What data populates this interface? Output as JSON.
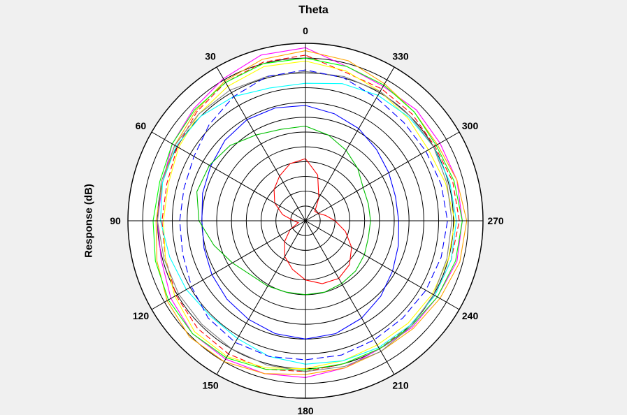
{
  "chart_data": {
    "type": "polar-line",
    "title": "Theta",
    "ylabel": "Response  (dB)",
    "angle_ticks": [
      "0",
      "30",
      "60",
      "90",
      "120",
      "150",
      "180",
      "210",
      "240",
      "270",
      "300",
      "330"
    ],
    "angle_direction": "counterclockwise",
    "angle_zero": "top",
    "rings": 12,
    "radial_range": [
      0,
      12
    ],
    "grid": true,
    "legend": "none",
    "series": [
      {
        "color": "#ff00ff",
        "values": [
          11.7,
          11.6,
          11.1,
          10.7,
          10.4,
          10.0,
          10.0,
          10.1,
          10.5,
          10.8,
          10.8,
          10.7,
          10.6,
          10.3,
          10.0,
          10.2,
          10.3,
          10.6,
          10.6,
          10.6,
          10.5,
          10.6,
          10.5,
          10.8
        ]
      },
      {
        "color": "#ff0000",
        "dash": "8,4",
        "values": [
          11.2,
          11.1,
          10.8,
          10.4,
          10.0,
          9.7,
          9.7,
          9.8,
          10.1,
          10.3,
          10.4,
          10.4,
          10.2,
          10.0,
          10.0,
          10.0,
          10.1,
          10.2,
          10.4,
          10.3,
          10.1,
          10.2,
          10.3,
          10.4
        ]
      },
      {
        "color": "#ffa500",
        "values": [
          11.5,
          11.3,
          10.9,
          10.5,
          10.2,
          10.0,
          10.1,
          10.4,
          10.8,
          11.1,
          11.0,
          10.7,
          10.4,
          10.3,
          10.2,
          10.3,
          10.5,
          10.8,
          10.9,
          10.6,
          10.3,
          10.4,
          10.7,
          11.2
        ]
      },
      {
        "color": "#ffff00",
        "values": [
          10.8,
          10.8,
          10.5,
          10.2,
          9.9,
          9.6,
          9.6,
          9.8,
          10.2,
          10.6,
          10.6,
          10.3,
          10.0,
          9.8,
          9.7,
          9.8,
          9.9,
          10.0,
          10.1,
          9.8,
          9.6,
          9.8,
          10.1,
          10.5
        ]
      },
      {
        "color": "#00ff00",
        "values": [
          11.0,
          11.0,
          10.8,
          10.6,
          10.4,
          10.2,
          10.3,
          10.5,
          10.7,
          10.8,
          10.7,
          10.4,
          10.1,
          10.0,
          10.0,
          10.1,
          10.3,
          10.5,
          10.6,
          10.4,
          10.2,
          10.4,
          10.6,
          10.8
        ]
      },
      {
        "color": "#00ffff",
        "values": [
          9.3,
          9.3,
          9.7,
          10.0,
          10.1,
          10.0,
          9.8,
          9.5,
          9.3,
          9.1,
          9.2,
          9.5,
          9.7,
          9.8,
          9.9,
          10.0,
          10.1,
          10.2,
          10.2,
          10.1,
          10.0,
          9.9,
          9.8,
          9.6
        ]
      },
      {
        "color": "#808080",
        "values": [
          10.1,
          10.1,
          10.2,
          10.2,
          10.2,
          10.1,
          10.0,
          9.9,
          9.9,
          9.9,
          10.0,
          10.1,
          10.2,
          10.2,
          10.2,
          10.1,
          10.0,
          9.9,
          9.9,
          9.9,
          10.0,
          10.0,
          10.1,
          10.1
        ]
      },
      {
        "color": "#0000ff",
        "dash": "10,5",
        "values": [
          10.2,
          10.1,
          9.7,
          9.2,
          8.7,
          8.5,
          8.5,
          8.6,
          8.9,
          9.3,
          9.5,
          9.5,
          9.4,
          9.4,
          9.3,
          9.3,
          9.4,
          9.5,
          9.6,
          9.5,
          9.4,
          9.4,
          9.6,
          10.0
        ]
      },
      {
        "color": "#0000ff",
        "values": [
          7.8,
          7.9,
          7.9,
          7.7,
          7.4,
          7.2,
          7.0,
          7.1,
          7.3,
          7.5,
          7.7,
          7.9,
          8.0,
          7.9,
          7.6,
          7.2,
          6.8,
          6.5,
          6.3,
          6.3,
          6.5,
          6.8,
          7.2,
          7.5
        ]
      },
      {
        "color": "#00c000",
        "values": [
          6.4,
          6.4,
          6.7,
          7.2,
          7.5,
          7.6,
          7.2,
          6.4,
          5.7,
          5.2,
          5.1,
          5.0,
          5.0,
          5.0,
          4.9,
          4.8,
          4.6,
          4.4,
          4.4,
          4.4,
          4.5,
          5.0,
          5.5,
          6.0
        ]
      },
      {
        "color": "#ff0000",
        "values": [
          4.2,
          4.0,
          3.5,
          3.0,
          2.4,
          1.6,
          0.8,
          0.5,
          1.2,
          2.0,
          2.8,
          3.4,
          4.0,
          4.4,
          4.5,
          4.2,
          3.6,
          2.8,
          2.0,
          1.4,
          1.0,
          0.9,
          1.8,
          3.2
        ]
      }
    ]
  }
}
